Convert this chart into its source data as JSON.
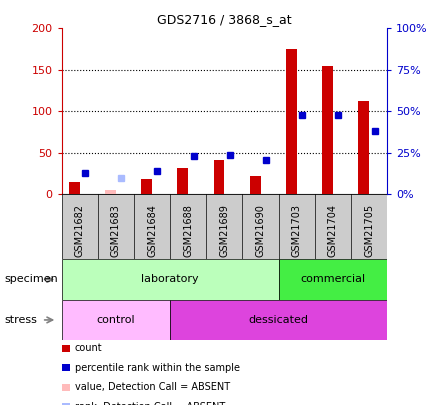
{
  "title": "GDS2716 / 3868_s_at",
  "samples": [
    "GSM21682",
    "GSM21683",
    "GSM21684",
    "GSM21688",
    "GSM21689",
    "GSM21690",
    "GSM21703",
    "GSM21704",
    "GSM21705"
  ],
  "count_values": [
    15,
    5,
    18,
    32,
    42,
    22,
    175,
    155,
    112
  ],
  "rank_values": [
    13,
    10,
    14,
    23,
    24,
    21,
    48,
    48,
    38
  ],
  "absent_flags": [
    false,
    true,
    false,
    false,
    false,
    false,
    false,
    false,
    false
  ],
  "count_color_present": "#cc0000",
  "count_color_absent": "#ffbbbb",
  "rank_color_present": "#0000cc",
  "rank_color_absent": "#aabbff",
  "ylim_left": [
    0,
    200
  ],
  "ylim_right": [
    0,
    100
  ],
  "yticks_left": [
    0,
    50,
    100,
    150,
    200
  ],
  "ytick_labels_left": [
    "0",
    "50",
    "100",
    "150",
    "200"
  ],
  "yticks_right": [
    0,
    25,
    50,
    75,
    100
  ],
  "ytick_labels_right": [
    "0%",
    "25%",
    "50%",
    "75%",
    "100%"
  ],
  "specimen_groups": [
    {
      "label": "laboratory",
      "start": 0,
      "end": 6,
      "color": "#bbffbb"
    },
    {
      "label": "commercial",
      "start": 6,
      "end": 9,
      "color": "#44ee44"
    }
  ],
  "stress_groups": [
    {
      "label": "control",
      "start": 0,
      "end": 3,
      "color": "#ffbbff"
    },
    {
      "label": "dessicated",
      "start": 3,
      "end": 9,
      "color": "#dd44dd"
    }
  ],
  "tick_band_color": "#cccccc",
  "specimen_label": "specimen",
  "stress_label": "stress",
  "bar_width": 0.3,
  "legend_items": [
    {
      "color": "#cc0000",
      "label": "count"
    },
    {
      "color": "#0000cc",
      "label": "percentile rank within the sample"
    },
    {
      "color": "#ffbbbb",
      "label": "value, Detection Call = ABSENT"
    },
    {
      "color": "#aabbff",
      "label": "rank, Detection Call = ABSENT"
    }
  ]
}
